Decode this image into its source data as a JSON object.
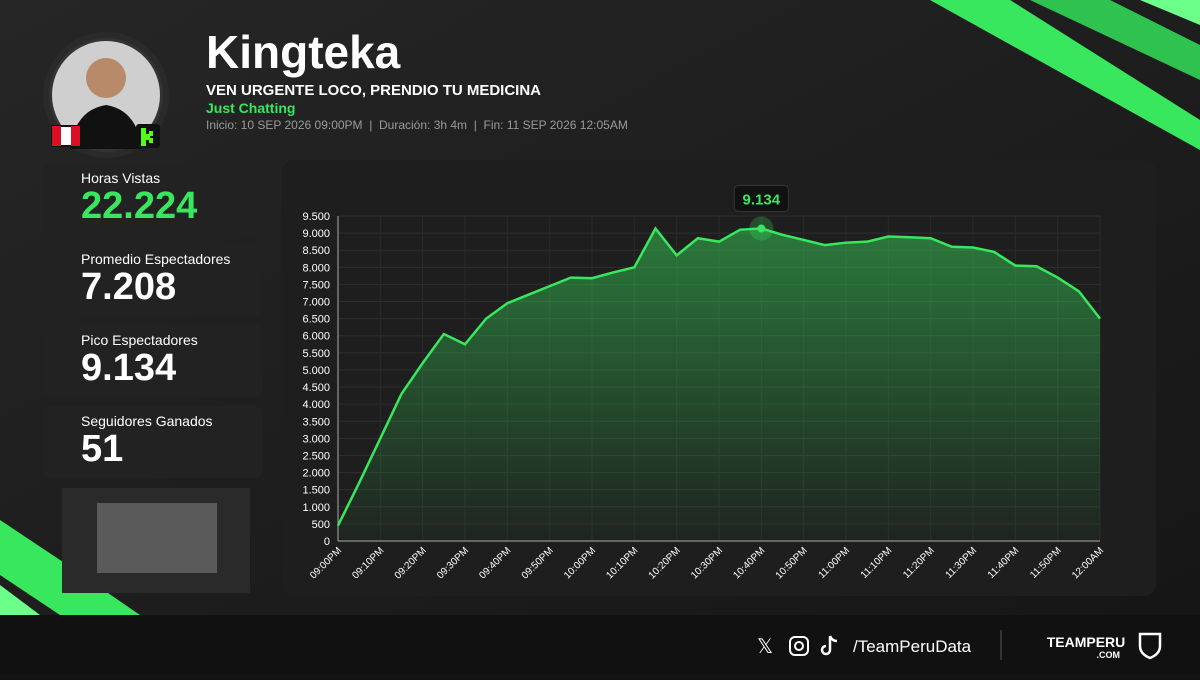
{
  "header": {
    "title": "Kingteka",
    "subtitle": "VEN URGENTE LOCO, PRENDIO TU MEDICINA",
    "category": "Just Chatting",
    "info": "Inicio: 10 SEP 2026 09:00PM  |  Duración: 3h 4m  |  Fin: 11 SEP 2026 12:05AM"
  },
  "stats": [
    {
      "label": "Horas Vistas",
      "value": "22.224"
    },
    {
      "label": "Promedio Espectadores",
      "value": "7.208"
    },
    {
      "label": "Pico Espectadores",
      "value": "9.134"
    },
    {
      "label": "Seguidores Ganados",
      "value": "51"
    }
  ],
  "footer": {
    "handle": "/TeamPeruData",
    "brand": "TEAMPERU",
    "brand_sub": ".COM"
  },
  "chart_data": {
    "type": "area",
    "color": "#39e75f",
    "categories": [
      "09:00PM",
      null,
      "09:10PM",
      null,
      "09:20PM",
      null,
      "09:30PM",
      null,
      "09:40PM",
      null,
      "09:50PM",
      null,
      "10:00PM",
      null,
      "10:10PM",
      null,
      "10:20PM",
      null,
      "10:30PM",
      null,
      "10:40PM",
      null,
      "10:50PM",
      null,
      "11:00PM",
      null,
      "11:10PM",
      null,
      "11:20PM",
      null,
      "11:30PM",
      null,
      "11:40PM",
      null,
      "11:50PM",
      null,
      "12:00AM"
    ],
    "values": [
      450,
      1700,
      3000,
      4300,
      5200,
      6050,
      5750,
      6500,
      6950,
      7200,
      7450,
      7700,
      7680,
      7850,
      8000,
      9134,
      8350,
      8850,
      8750,
      9100,
      9134,
      8950,
      8800,
      8650,
      8720,
      8750,
      8900,
      8880,
      8850,
      8600,
      8580,
      8450,
      8050,
      8030,
      7700,
      7300,
      6500
    ],
    "value_labels": [
      null,
      null,
      null,
      null,
      null,
      null,
      null,
      null,
      null,
      null,
      null,
      null,
      null,
      null,
      null,
      null,
      null,
      null,
      null,
      null,
      "9.134",
      null,
      null,
      null,
      null,
      null,
      null,
      null,
      null,
      null,
      null,
      null,
      null,
      null,
      null,
      null,
      null
    ],
    "ylim": [
      0,
      9500
    ],
    "yticks": [
      0,
      500,
      {
        "value": 1000,
        "label": "1.000"
      },
      {
        "value": 1500,
        "label": "1.500"
      },
      {
        "value": 2000,
        "label": "2.000"
      },
      {
        "value": 2500,
        "label": "2.500"
      },
      {
        "value": 3000,
        "label": "3.000"
      },
      {
        "value": 3500,
        "label": "3.500"
      },
      {
        "value": 4000,
        "label": "4.000"
      },
      {
        "value": 4500,
        "label": "4.500"
      },
      {
        "value": 5000,
        "label": "5.000"
      },
      {
        "value": 5500,
        "label": "5.500"
      },
      {
        "value": 6000,
        "label": "6.000"
      },
      {
        "value": 6500,
        "label": "6.500"
      },
      {
        "value": 7000,
        "label": "7.000"
      },
      {
        "value": 7500,
        "label": "7.500"
      },
      {
        "value": 8000,
        "label": "8.000"
      },
      {
        "value": 8500,
        "label": "8.500"
      },
      {
        "value": 9000,
        "label": "9.000"
      },
      {
        "value": 9500,
        "label": "9.500"
      }
    ],
    "grid": true
  }
}
